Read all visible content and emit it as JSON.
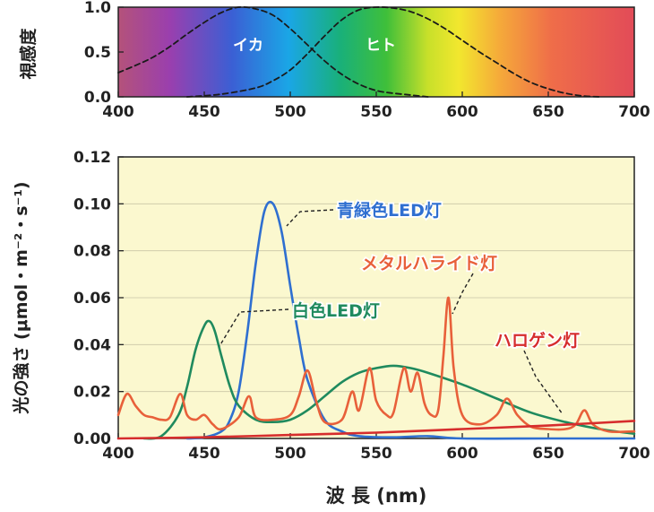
{
  "chart_data": [
    {
      "type": "line",
      "ylabel": "視感度",
      "xlim": [
        400,
        700
      ],
      "ylim": [
        0.0,
        1.0
      ],
      "xticks": [
        "400",
        "450",
        "500",
        "550",
        "600",
        "650",
        "700"
      ],
      "yticks": [
        "0.0",
        "0.5",
        "1.0"
      ],
      "background": "visible-spectrum-gradient",
      "series": [
        {
          "name": "イカ",
          "style": "dashed",
          "x": [
            400,
            410,
            420,
            430,
            440,
            450,
            460,
            470,
            480,
            490,
            500,
            510,
            520,
            530,
            540,
            550,
            560,
            570,
            580
          ],
          "values": [
            0.27,
            0.35,
            0.44,
            0.56,
            0.7,
            0.83,
            0.94,
            1.0,
            0.98,
            0.91,
            0.76,
            0.58,
            0.4,
            0.25,
            0.14,
            0.07,
            0.04,
            0.02,
            0.0
          ]
        },
        {
          "name": "ヒト",
          "style": "dashed",
          "x": [
            440,
            460,
            480,
            490,
            500,
            510,
            520,
            530,
            540,
            550,
            560,
            570,
            580,
            590,
            600,
            610,
            620,
            630,
            640,
            650,
            660,
            670,
            680
          ],
          "values": [
            0.0,
            0.03,
            0.1,
            0.18,
            0.3,
            0.48,
            0.68,
            0.86,
            0.97,
            1.0,
            0.99,
            0.95,
            0.87,
            0.76,
            0.63,
            0.5,
            0.38,
            0.26,
            0.16,
            0.09,
            0.04,
            0.01,
            0.0
          ]
        }
      ]
    },
    {
      "type": "line",
      "xlabel": "波 長 (nm)",
      "ylabel": "光の強さ (μmol・m⁻²・s⁻¹)",
      "xlim": [
        400,
        700
      ],
      "ylim": [
        0.0,
        0.12
      ],
      "xticks": [
        "400",
        "450",
        "500",
        "550",
        "600",
        "650",
        "700"
      ],
      "yticks": [
        "0.00",
        "0.02",
        "0.04",
        "0.06",
        "0.08",
        "0.10",
        "0.12"
      ],
      "series": [
        {
          "name": "青緑色LED灯",
          "color": "#2f6fd0",
          "x": [
            440,
            450,
            460,
            465,
            470,
            475,
            480,
            485,
            490,
            495,
            500,
            505,
            510,
            520,
            530,
            540,
            560,
            580,
            600,
            650,
            700
          ],
          "values": [
            0.0,
            0.0005,
            0.003,
            0.008,
            0.02,
            0.045,
            0.075,
            0.097,
            0.1,
            0.088,
            0.065,
            0.043,
            0.025,
            0.008,
            0.003,
            0.001,
            0.0005,
            0.001,
            0.0,
            0.0,
            0.0
          ]
        },
        {
          "name": "白色LED灯",
          "color": "#1f8a5e",
          "x": [
            415,
            425,
            435,
            440,
            445,
            450,
            453,
            456,
            460,
            465,
            470,
            480,
            490,
            500,
            510,
            520,
            530,
            540,
            550,
            560,
            570,
            580,
            600,
            620,
            640,
            660,
            680,
            700
          ],
          "values": [
            0.0,
            0.001,
            0.01,
            0.022,
            0.038,
            0.048,
            0.05,
            0.046,
            0.035,
            0.022,
            0.014,
            0.008,
            0.007,
            0.008,
            0.012,
            0.018,
            0.024,
            0.028,
            0.03,
            0.031,
            0.03,
            0.028,
            0.023,
            0.017,
            0.011,
            0.007,
            0.004,
            0.002
          ]
        },
        {
          "name": "メタルハライド灯",
          "color": "#e8603a",
          "x": [
            400,
            405,
            410,
            415,
            420,
            425,
            430,
            436,
            440,
            445,
            450,
            455,
            460,
            470,
            476,
            480,
            490,
            500,
            505,
            510,
            515,
            520,
            530,
            536,
            540,
            546,
            550,
            556,
            560,
            566,
            570,
            574,
            578,
            582,
            586,
            589,
            592,
            595,
            600,
            610,
            620,
            626,
            632,
            640,
            650,
            660,
            666,
            671,
            676,
            685,
            700
          ],
          "values": [
            0.01,
            0.019,
            0.014,
            0.01,
            0.009,
            0.008,
            0.009,
            0.019,
            0.01,
            0.008,
            0.01,
            0.006,
            0.004,
            0.009,
            0.018,
            0.009,
            0.008,
            0.01,
            0.018,
            0.029,
            0.016,
            0.007,
            0.008,
            0.02,
            0.012,
            0.03,
            0.016,
            0.01,
            0.011,
            0.03,
            0.02,
            0.028,
            0.015,
            0.01,
            0.012,
            0.035,
            0.06,
            0.03,
            0.01,
            0.006,
            0.01,
            0.017,
            0.01,
            0.005,
            0.004,
            0.004,
            0.006,
            0.012,
            0.006,
            0.003,
            0.003
          ]
        },
        {
          "name": "ハロゲン灯",
          "color": "#d62d2d",
          "x": [
            400,
            450,
            500,
            550,
            600,
            650,
            700
          ],
          "values": [
            0.0,
            0.0005,
            0.0015,
            0.0025,
            0.004,
            0.0055,
            0.0075
          ]
        }
      ]
    }
  ]
}
